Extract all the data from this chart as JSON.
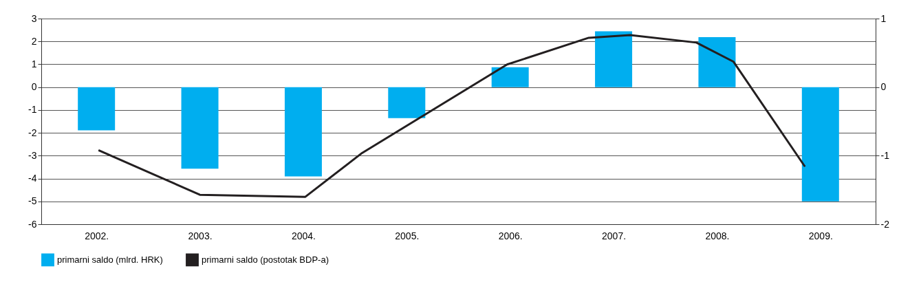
{
  "chart_data": {
    "type": "bar",
    "x": [
      2002,
      2003,
      2004,
      2005,
      2006,
      2007,
      2008,
      2009
    ],
    "xlim": [
      2001.5,
      2009.5
    ],
    "xticks": [
      {
        "value": 2002,
        "label": "2002."
      },
      {
        "value": 2003,
        "label": "2003."
      },
      {
        "value": 2004,
        "label": "2004."
      },
      {
        "value": 2005,
        "label": "2005."
      },
      {
        "value": 2006,
        "label": "2006."
      },
      {
        "value": 2007,
        "label": "2007."
      },
      {
        "value": 2008,
        "label": "2008."
      },
      {
        "value": 2009,
        "label": "2009."
      }
    ],
    "series": [
      {
        "name": "primarni saldo (mlrd. HRK)",
        "color": "#00aeef",
        "values": [
          -1.89,
          -3.57,
          -3.91,
          -1.36,
          0.87,
          2.44,
          2.19,
          -5.0
        ]
      },
      {
        "name": "primarni saldo (postotak BDP-a)",
        "color": "#231f20",
        "type": "line",
        "axis": "y2",
        "x": [
          2002.02,
          2003.0,
          2004.02,
          2004.56,
          2005.97,
          2006.76,
          2007.16,
          2007.8,
          2008.16,
          2008.85
        ],
        "values": [
          -0.92,
          -1.57,
          -1.6,
          -0.97,
          0.33,
          0.72,
          0.76,
          0.65,
          0.37,
          -1.16
        ]
      }
    ],
    "ylim": [
      -6,
      3
    ],
    "yticks": [
      -6,
      -5,
      -4,
      -3,
      -2,
      -1,
      0,
      1,
      2,
      3
    ],
    "y2lim": [
      -2,
      1
    ],
    "y2ticks": [
      -2,
      -1,
      0,
      1
    ],
    "grid": "y",
    "legend": "bottom",
    "marker": "none",
    "line_style": "solid"
  }
}
